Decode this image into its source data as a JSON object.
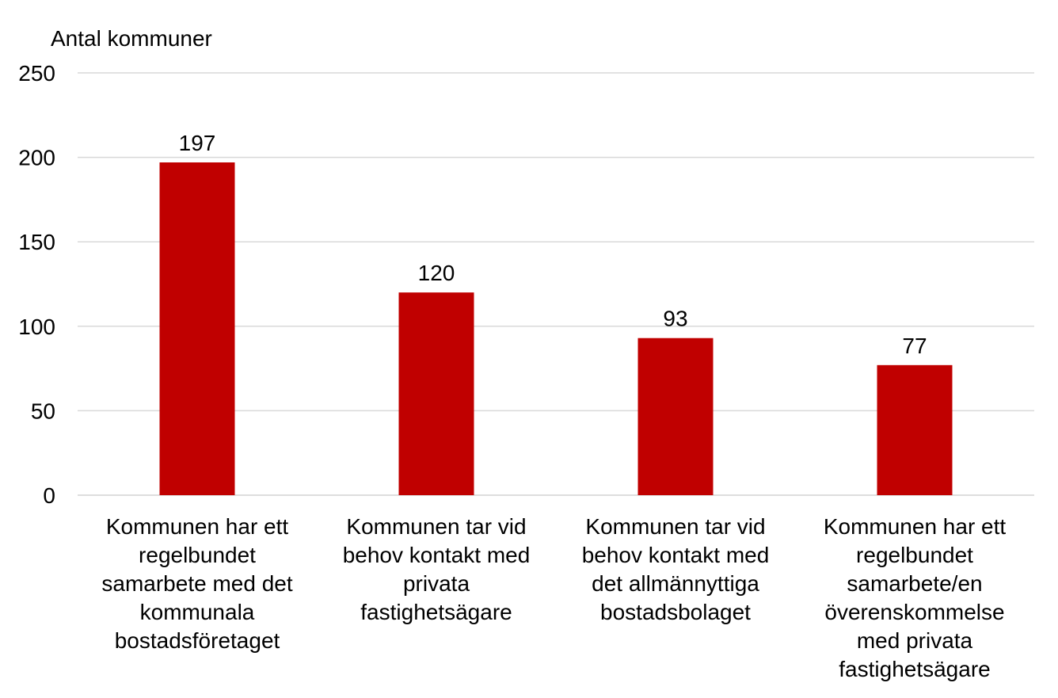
{
  "chart_data": {
    "type": "bar",
    "title": "",
    "ylabel": "Antal kommuner",
    "xlabel": "",
    "ylim": [
      0,
      250
    ],
    "yticks": [
      0,
      50,
      100,
      150,
      200,
      250
    ],
    "grid": true,
    "bar_color": "#c00000",
    "categories": [
      [
        "Kommunen har ett",
        "regelbundet",
        "samarbete med det",
        "kommunala",
        "bostadsföretaget"
      ],
      [
        "Kommunen tar vid",
        "behov kontakt med",
        "privata",
        "fastighetsägare"
      ],
      [
        "Kommunen tar vid",
        "behov kontakt med",
        "det allmännyttiga",
        "bostadsbolaget"
      ],
      [
        "Kommunen har ett",
        "regelbundet",
        "samarbete/en",
        "överenskommelse",
        "med privata",
        "fastighetsägare"
      ]
    ],
    "values": [
      197,
      120,
      93,
      77
    ],
    "data_labels": [
      "197",
      "120",
      "93",
      "77"
    ],
    "tick_labels": [
      "0",
      "50",
      "100",
      "150",
      "200",
      "250"
    ]
  }
}
